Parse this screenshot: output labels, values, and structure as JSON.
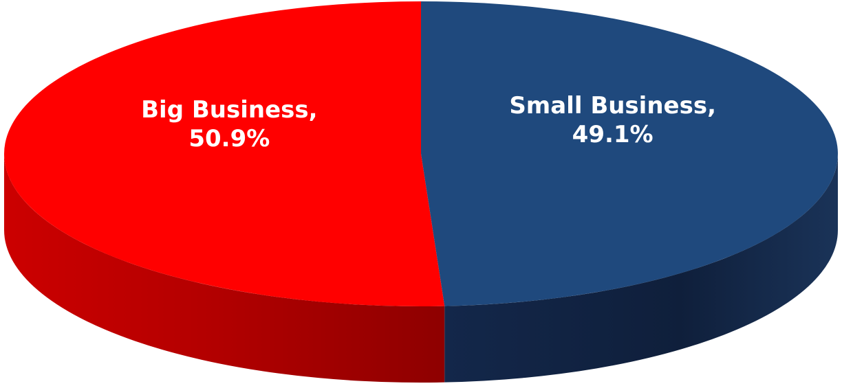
{
  "chart_data": {
    "type": "pie",
    "style": "3d",
    "slices": [
      {
        "label": "Big Business",
        "value": 50.9,
        "display": "50.9%",
        "color": "#ff0000"
      },
      {
        "label": "Small Business",
        "value": 49.1,
        "display": "49.1%",
        "color": "#1f497d"
      }
    ],
    "legend": "none"
  }
}
